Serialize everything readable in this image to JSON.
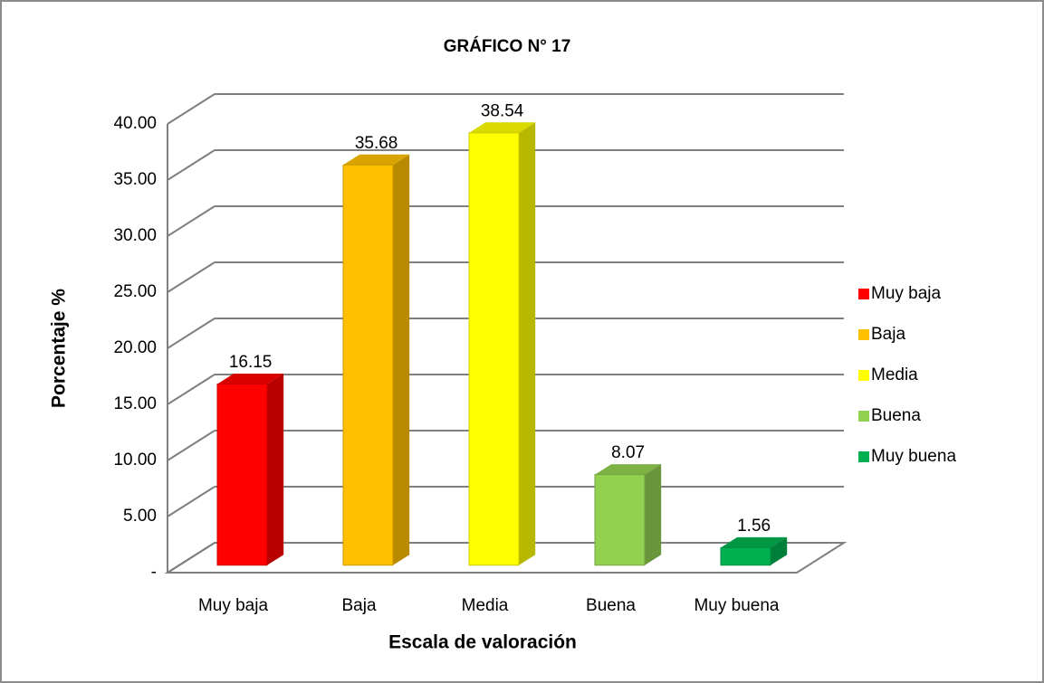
{
  "chart_data": {
    "type": "bar3d",
    "title": "GRÁFICO N° 17",
    "x_label": "Escala de valoración",
    "y_label": "Porcentaje %",
    "categories": [
      "Muy baja",
      "Baja",
      "Media",
      "Buena",
      "Muy buena"
    ],
    "values": [
      16.15,
      35.68,
      38.54,
      8.07,
      1.56
    ],
    "colors": [
      "#ff0000",
      "#ffc000",
      "#ffff00",
      "#92d050",
      "#00b050"
    ],
    "ylim": [
      0,
      40
    ],
    "yticks": [
      {
        "value": 0,
        "label": "-"
      },
      {
        "value": 5,
        "label": "5.00"
      },
      {
        "value": 10,
        "label": "10.00"
      },
      {
        "value": 15,
        "label": "15.00"
      },
      {
        "value": 20,
        "label": "20.00"
      },
      {
        "value": 25,
        "label": "25.00"
      },
      {
        "value": 30,
        "label": "30.00"
      },
      {
        "value": 35,
        "label": "35.00"
      },
      {
        "value": 40,
        "label": "40.00"
      }
    ],
    "grid": true,
    "legend": "right"
  }
}
